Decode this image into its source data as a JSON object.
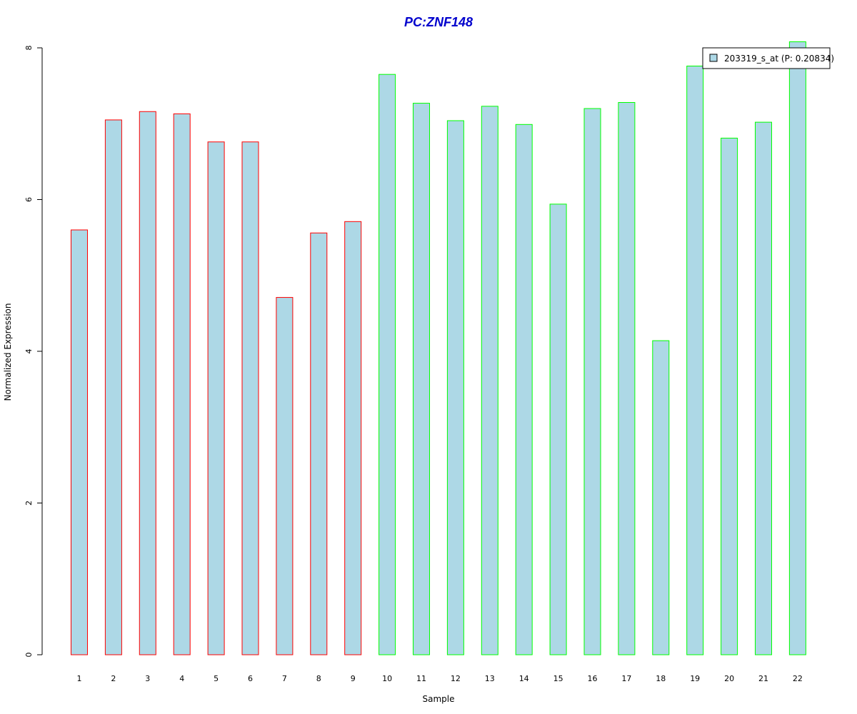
{
  "chart_data": {
    "type": "bar",
    "title": "PC:ZNF148",
    "xlabel": "Sample",
    "ylabel": "Normalized Expression",
    "categories": [
      "1",
      "2",
      "3",
      "4",
      "5",
      "6",
      "7",
      "8",
      "9",
      "10",
      "11",
      "12",
      "13",
      "14",
      "15",
      "16",
      "17",
      "18",
      "19",
      "20",
      "21",
      "22"
    ],
    "series": [
      {
        "name": "203319_s_at (P: 0.20834)",
        "values": [
          5.6,
          7.05,
          7.16,
          7.13,
          6.76,
          6.76,
          4.71,
          5.56,
          5.71,
          7.65,
          7.27,
          7.04,
          7.23,
          6.99,
          5.94,
          7.2,
          7.28,
          4.14,
          7.76,
          6.81,
          7.02,
          8.08
        ]
      }
    ],
    "bar_groups": [
      "red",
      "red",
      "red",
      "red",
      "red",
      "red",
      "red",
      "red",
      "red",
      "green",
      "green",
      "green",
      "green",
      "green",
      "green",
      "green",
      "green",
      "green",
      "green",
      "green",
      "green",
      "green"
    ],
    "ylim": [
      0,
      8
    ],
    "yticks": [
      "0",
      "2",
      "4",
      "6",
      "8"
    ],
    "grid": false,
    "legend_position": "top-right"
  },
  "colors": {
    "bar_fill": "#add8e6",
    "red": "#ff0000",
    "green": "#00ff00",
    "title": "#0000cd",
    "axis": "#000000"
  }
}
